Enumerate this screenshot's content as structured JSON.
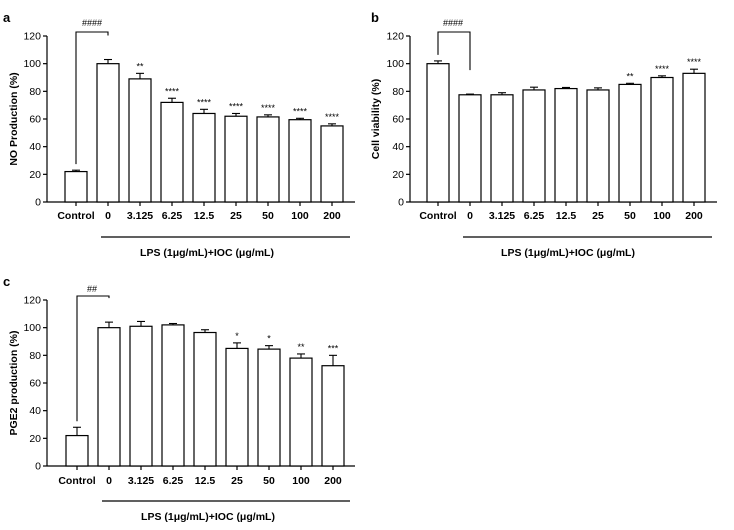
{
  "panels": [
    {
      "letter": "a",
      "ylabel": "NO Production (%)",
      "xlabel": "LPS (1μg/mL)+IOC (μg/mL)",
      "bracket_label": "####"
    },
    {
      "letter": "b",
      "ylabel": "Cell viability (%)",
      "xlabel": "LPS (1μg/mL)+IOC (μg/mL)",
      "bracket_label": "####"
    },
    {
      "letter": "c",
      "ylabel": "PGE2 production (%)",
      "xlabel": "LPS (1μg/mL)+IOC (μg/mL)",
      "bracket_label": "##"
    }
  ],
  "chart_data": [
    {
      "type": "bar",
      "panel": "a",
      "categories": [
        "Control",
        "0",
        "3.125",
        "6.25",
        "12.5",
        "25",
        "50",
        "100",
        "200"
      ],
      "values": [
        22,
        100,
        89,
        72,
        64,
        62,
        61.5,
        59.5,
        55
      ],
      "errors": [
        1,
        3,
        4,
        3,
        3,
        2,
        1.5,
        1,
        1.5
      ],
      "significance": [
        "",
        "",
        "**",
        "****",
        "****",
        "****",
        "****",
        "****",
        "****"
      ],
      "xlabel": "LPS (1μg/mL)+IOC (μg/mL)",
      "ylabel": "NO Production (%)",
      "ylim": [
        0,
        120
      ],
      "yticks": [
        0,
        20,
        40,
        60,
        80,
        100,
        120
      ],
      "comparison": {
        "from": "Control",
        "to": "0",
        "label": "####"
      }
    },
    {
      "type": "bar",
      "panel": "b",
      "categories": [
        "Control",
        "0",
        "3.125",
        "6.25",
        "12.5",
        "25",
        "50",
        "100",
        "200"
      ],
      "values": [
        100,
        77.5,
        77.5,
        81,
        82,
        81,
        85,
        90,
        93
      ],
      "errors": [
        2,
        0.5,
        1.5,
        2,
        0.8,
        1.5,
        0.8,
        1.2,
        3
      ],
      "significance": [
        "",
        "",
        "",
        "",
        "",
        "",
        "**",
        "****",
        "****"
      ],
      "xlabel": "LPS (1μg/mL)+IOC (μg/mL)",
      "ylabel": "Cell viability (%)",
      "ylim": [
        0,
        120
      ],
      "yticks": [
        0,
        20,
        40,
        60,
        80,
        100,
        120
      ],
      "comparison": {
        "from": "Control",
        "to": "0",
        "label": "####"
      }
    },
    {
      "type": "bar",
      "panel": "c",
      "categories": [
        "Control",
        "0",
        "3.125",
        "6.25",
        "12.5",
        "25",
        "50",
        "100",
        "200"
      ],
      "values": [
        22,
        100,
        101,
        102,
        96.5,
        85,
        84.5,
        78,
        72.5
      ],
      "errors": [
        6,
        4,
        3.5,
        1,
        2,
        4,
        2.5,
        3,
        7.5
      ],
      "significance": [
        "",
        "",
        "",
        "",
        "",
        "*",
        "*",
        "**",
        "***"
      ],
      "xlabel": "LPS (1μg/mL)+IOC (μg/mL)",
      "ylabel": "PGE2 production (%)",
      "ylim": [
        0,
        120
      ],
      "yticks": [
        0,
        20,
        40,
        60,
        80,
        100,
        120
      ],
      "comparison": {
        "from": "Control",
        "to": "0",
        "label": "##"
      }
    }
  ]
}
